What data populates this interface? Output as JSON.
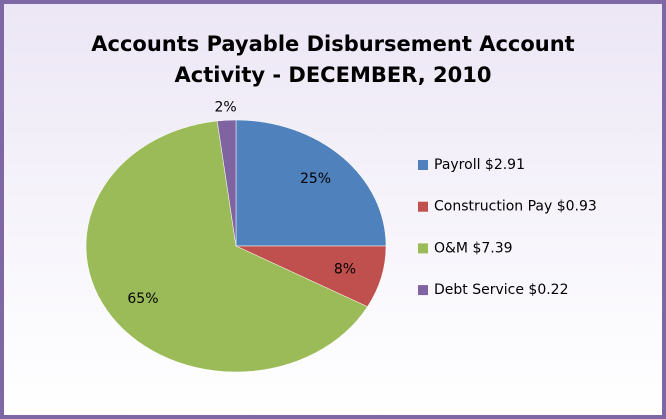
{
  "chart_data": {
    "type": "pie",
    "title": [
      "Accounts Payable Disbursement Account",
      "Activity - DECEMBER, 2010"
    ],
    "series": [
      {
        "name": "Payroll $2.91",
        "color": "#4f81bd"
      },
      {
        "name": "Construction Pay $0.93",
        "color": "#c0504d"
      },
      {
        "name": "O&M $7.39",
        "color": "#9bbb59"
      },
      {
        "name": "Debt Service $0.22",
        "color": "#8064a2"
      }
    ],
    "values": [
      25,
      8,
      65,
      2
    ],
    "value_labels": [
      "25%",
      "8%",
      "65%",
      "2%"
    ],
    "legend": "right"
  }
}
